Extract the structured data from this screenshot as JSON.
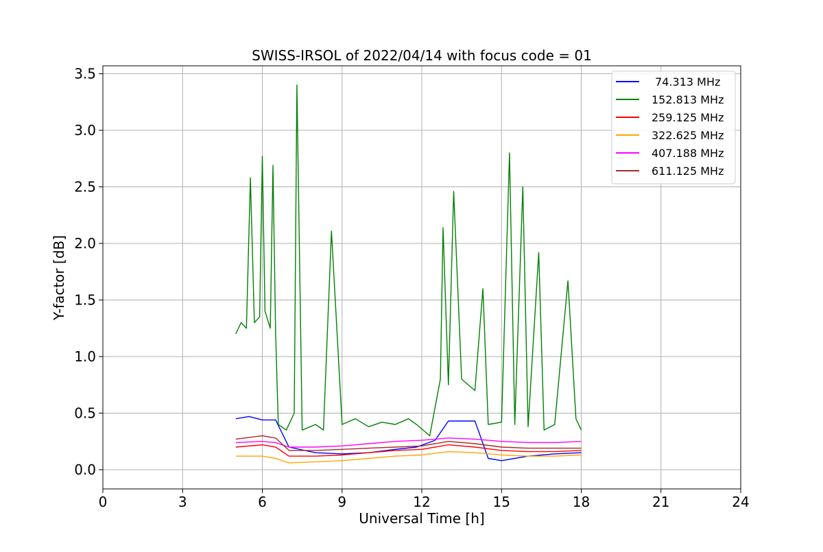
{
  "chart_data": {
    "type": "line",
    "title": "SWISS-IRSOL of 2022/04/14 with focus code = 01",
    "xlabel": "Universal Time [h]",
    "ylabel": "Y-factor [dB]",
    "xlim": [
      0,
      24
    ],
    "ylim": [
      -0.17,
      3.57
    ],
    "xticks": [
      0,
      3,
      6,
      9,
      12,
      15,
      18,
      21,
      24
    ],
    "xtick_labels": [
      "0",
      "3",
      "6",
      "9",
      "12",
      "15",
      "18",
      "21",
      "24"
    ],
    "yticks": [
      0.0,
      0.5,
      1.0,
      1.5,
      2.0,
      2.5,
      3.0,
      3.5
    ],
    "ytick_labels": [
      "0.0",
      "0.5",
      "1.0",
      "1.5",
      "2.0",
      "2.5",
      "3.0",
      "3.5"
    ],
    "grid": true,
    "legend_position": "top-right",
    "series": [
      {
        "name": " 74.313 MHz",
        "color": "#0000ff",
        "x": [
          5.0,
          5.5,
          6.0,
          6.5,
          7.0,
          8.0,
          9.0,
          10.0,
          11.0,
          11.8,
          12.5,
          13.0,
          14.0,
          14.5,
          15.0,
          16.0,
          17.0,
          18.0
        ],
        "y": [
          0.45,
          0.47,
          0.44,
          0.44,
          0.2,
          0.15,
          0.14,
          0.15,
          0.18,
          0.2,
          0.26,
          0.43,
          0.43,
          0.1,
          0.08,
          0.12,
          0.14,
          0.15
        ]
      },
      {
        "name": "152.813 MHz",
        "color": "#008000",
        "x": [
          5.0,
          5.2,
          5.4,
          5.55,
          5.7,
          5.9,
          6.0,
          6.1,
          6.3,
          6.4,
          6.5,
          6.6,
          6.9,
          7.2,
          7.3,
          7.5,
          8.0,
          8.3,
          8.6,
          9.0,
          9.5,
          10.0,
          10.5,
          11.0,
          11.5,
          11.8,
          12.3,
          12.7,
          12.8,
          13.0,
          13.2,
          13.5,
          14.0,
          14.3,
          14.5,
          15.0,
          15.3,
          15.5,
          15.8,
          16.0,
          16.4,
          16.6,
          17.0,
          17.5,
          17.8,
          18.0
        ],
        "y": [
          1.2,
          1.3,
          1.25,
          2.58,
          1.3,
          1.35,
          2.77,
          1.4,
          1.25,
          2.69,
          1.2,
          0.4,
          0.35,
          0.5,
          3.4,
          0.35,
          0.4,
          0.35,
          2.11,
          0.4,
          0.45,
          0.38,
          0.42,
          0.4,
          0.45,
          0.4,
          0.3,
          0.8,
          2.14,
          0.75,
          2.46,
          0.8,
          0.7,
          1.6,
          0.4,
          0.42,
          2.8,
          0.4,
          2.5,
          0.38,
          1.92,
          0.35,
          0.4,
          1.67,
          0.45,
          0.35
        ]
      },
      {
        "name": "259.125 MHz",
        "color": "#ff0000",
        "x": [
          5.0,
          6.0,
          6.5,
          7.0,
          8.0,
          9.0,
          10.0,
          11.0,
          12.0,
          13.0,
          14.0,
          15.0,
          16.0,
          17.0,
          18.0
        ],
        "y": [
          0.2,
          0.22,
          0.2,
          0.12,
          0.12,
          0.13,
          0.15,
          0.17,
          0.18,
          0.22,
          0.2,
          0.17,
          0.16,
          0.16,
          0.17
        ]
      },
      {
        "name": "322.625 MHz",
        "color": "#ffa500",
        "x": [
          5.0,
          6.0,
          6.5,
          7.0,
          8.0,
          9.0,
          10.0,
          11.0,
          12.0,
          13.0,
          14.0,
          15.0,
          16.0,
          17.0,
          18.0
        ],
        "y": [
          0.12,
          0.12,
          0.1,
          0.06,
          0.07,
          0.08,
          0.1,
          0.12,
          0.13,
          0.16,
          0.15,
          0.13,
          0.12,
          0.12,
          0.13
        ]
      },
      {
        "name": "407.188 MHz",
        "color": "#ff00ff",
        "x": [
          5.0,
          6.0,
          6.5,
          7.0,
          8.0,
          9.0,
          10.0,
          11.0,
          12.0,
          13.0,
          14.0,
          15.0,
          16.0,
          17.0,
          18.0
        ],
        "y": [
          0.24,
          0.25,
          0.24,
          0.2,
          0.2,
          0.21,
          0.23,
          0.25,
          0.26,
          0.28,
          0.27,
          0.25,
          0.24,
          0.24,
          0.25
        ]
      },
      {
        "name": "611.125 MHz",
        "color": "#a52a2a",
        "x": [
          5.0,
          6.0,
          6.5,
          7.0,
          8.0,
          9.0,
          10.0,
          11.0,
          12.0,
          13.0,
          14.0,
          15.0,
          16.0,
          17.0,
          18.0
        ],
        "y": [
          0.27,
          0.3,
          0.28,
          0.17,
          0.17,
          0.18,
          0.19,
          0.2,
          0.21,
          0.25,
          0.23,
          0.2,
          0.19,
          0.19,
          0.19
        ]
      }
    ]
  }
}
